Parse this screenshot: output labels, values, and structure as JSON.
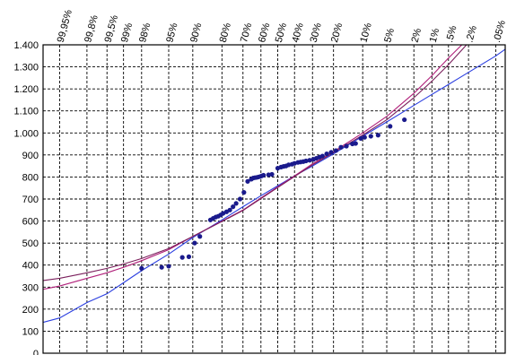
{
  "chart_data": {
    "type": "scatter",
    "title": "",
    "xlabel": "",
    "ylabel": "",
    "ylim": [
      0,
      1400
    ],
    "y_ticks": [
      0,
      100,
      200,
      300,
      400,
      500,
      600,
      700,
      800,
      900,
      1000,
      1100,
      1200,
      1300,
      1400
    ],
    "y_tick_labels": [
      "0",
      "100",
      "200",
      "300",
      "400",
      "500",
      "600",
      "700",
      "800",
      "900",
      "1.000",
      "1.100",
      "1.200",
      "1.300",
      "1.400"
    ],
    "x_axis_scale": "probability (normal)",
    "x_ticks": [
      99.95,
      99.8,
      99.5,
      99,
      98,
      95,
      90,
      80,
      70,
      60,
      50,
      40,
      30,
      20,
      10,
      5,
      2,
      1,
      0.5,
      0.2,
      0.05
    ],
    "x_tick_labels": [
      "99,95%",
      "99,8%",
      "99,5%",
      "99%",
      "98%",
      "95%",
      "90%",
      "80%",
      "70%",
      "60%",
      "50%",
      "40%",
      "30%",
      "20%",
      "10%",
      "5%",
      "2%",
      "1%",
      ".5%",
      ".2%",
      ".05%"
    ],
    "xlim": [
      99.98,
      0.03
    ],
    "grid": true,
    "series": [
      {
        "kind": "points",
        "color": "#1a1a8c",
        "points": [
          [
            98,
            385
          ],
          [
            96,
            390
          ],
          [
            95,
            395
          ],
          [
            92.5,
            435
          ],
          [
            91,
            438
          ],
          [
            89.5,
            500
          ],
          [
            88,
            530
          ],
          [
            84.5,
            605
          ],
          [
            83.5,
            612
          ],
          [
            82.5,
            618
          ],
          [
            81.5,
            622
          ],
          [
            80.5,
            628
          ],
          [
            79.5,
            635
          ],
          [
            78,
            642
          ],
          [
            76.5,
            650
          ],
          [
            75,
            665
          ],
          [
            73.5,
            680
          ],
          [
            71.5,
            700
          ],
          [
            69.5,
            730
          ],
          [
            67.5,
            780
          ],
          [
            65.5,
            790
          ],
          [
            64.5,
            795
          ],
          [
            63.5,
            797
          ],
          [
            62.5,
            798
          ],
          [
            61.5,
            800
          ],
          [
            60.5,
            802
          ],
          [
            59.5,
            805
          ],
          [
            58.5,
            808
          ],
          [
            55.5,
            810
          ],
          [
            53.5,
            812
          ],
          [
            50,
            840
          ],
          [
            48,
            845
          ],
          [
            46.5,
            848
          ],
          [
            45,
            850
          ],
          [
            43.5,
            855
          ],
          [
            41.5,
            858
          ],
          [
            40,
            862
          ],
          [
            38,
            866
          ],
          [
            36.5,
            868
          ],
          [
            35,
            870
          ],
          [
            33.5,
            873
          ],
          [
            31.5,
            876
          ],
          [
            29.5,
            880
          ],
          [
            28,
            885
          ],
          [
            26.5,
            890
          ],
          [
            25,
            895
          ],
          [
            23,
            905
          ],
          [
            21,
            912
          ],
          [
            19,
            920
          ],
          [
            17,
            935
          ],
          [
            15,
            940
          ],
          [
            13,
            950
          ],
          [
            12,
            952
          ],
          [
            10.5,
            975
          ],
          [
            9.5,
            980
          ],
          [
            8,
            985
          ],
          [
            6.5,
            990
          ],
          [
            4.5,
            1030
          ],
          [
            2.8,
            1060
          ]
        ]
      },
      {
        "kind": "line",
        "color": "#2b3fe0",
        "points": [
          [
            99.98,
            140
          ],
          [
            99.95,
            160
          ],
          [
            99.8,
            230
          ],
          [
            99.5,
            270
          ],
          [
            99,
            320
          ],
          [
            98,
            375
          ],
          [
            95,
            450
          ],
          [
            90,
            525
          ],
          [
            80,
            605
          ],
          [
            70,
            665
          ],
          [
            60,
            715
          ],
          [
            50,
            760
          ],
          [
            40,
            805
          ],
          [
            30,
            850
          ],
          [
            20,
            905
          ],
          [
            10,
            985
          ],
          [
            5,
            1050
          ],
          [
            2,
            1125
          ],
          [
            1,
            1175
          ],
          [
            0.5,
            1220
          ],
          [
            0.2,
            1275
          ],
          [
            0.05,
            1350
          ],
          [
            0.03,
            1380
          ]
        ]
      },
      {
        "kind": "line",
        "color": "#b0207a",
        "points": [
          [
            99.98,
            290
          ],
          [
            99.95,
            305
          ],
          [
            99.8,
            340
          ],
          [
            99.5,
            365
          ],
          [
            99,
            390
          ],
          [
            98,
            420
          ],
          [
            95,
            470
          ],
          [
            90,
            530
          ],
          [
            80,
            600
          ],
          [
            70,
            650
          ],
          [
            60,
            705
          ],
          [
            50,
            755
          ],
          [
            40,
            805
          ],
          [
            30,
            860
          ],
          [
            20,
            915
          ],
          [
            10,
            1000
          ],
          [
            5,
            1075
          ],
          [
            2,
            1180
          ],
          [
            1,
            1260
          ],
          [
            0.5,
            1340
          ],
          [
            0.2,
            1430
          ]
        ]
      },
      {
        "kind": "line",
        "color": "#7a1f5c",
        "points": [
          [
            99.98,
            330
          ],
          [
            99.95,
            340
          ],
          [
            99.8,
            365
          ],
          [
            99.5,
            385
          ],
          [
            99,
            405
          ],
          [
            98,
            430
          ],
          [
            95,
            475
          ],
          [
            90,
            530
          ],
          [
            80,
            598
          ],
          [
            70,
            648
          ],
          [
            60,
            702
          ],
          [
            50,
            752
          ],
          [
            40,
            802
          ],
          [
            30,
            855
          ],
          [
            20,
            910
          ],
          [
            10,
            990
          ],
          [
            5,
            1060
          ],
          [
            2,
            1160
          ],
          [
            1,
            1235
          ],
          [
            0.5,
            1310
          ],
          [
            0.2,
            1410
          ]
        ]
      }
    ]
  }
}
